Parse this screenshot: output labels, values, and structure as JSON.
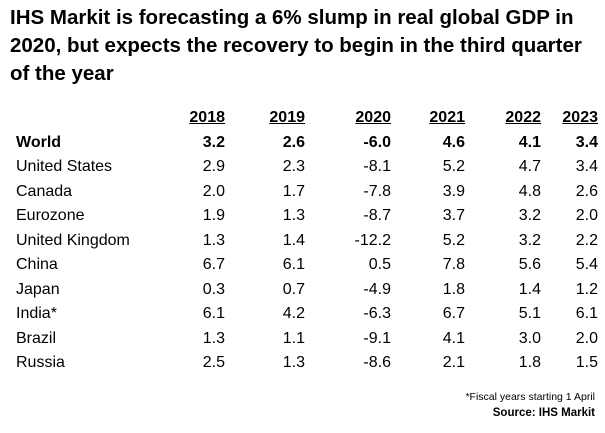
{
  "chart_data": {
    "type": "table",
    "title": "IHS Markit is forecasting a 6% slump in real global GDP in 2020, but expects the recovery to begin in the third quarter of the year",
    "columns": [
      "2018",
      "2019",
      "2020",
      "2021",
      "2022",
      "2023"
    ],
    "rows": [
      {
        "label": "World",
        "values": [
          "3.2",
          "2.6",
          "-6.0",
          "4.6",
          "4.1",
          "3.4"
        ]
      },
      {
        "label": "United States",
        "values": [
          "2.9",
          "2.3",
          "-8.1",
          "5.2",
          "4.7",
          "3.4"
        ]
      },
      {
        "label": "Canada",
        "values": [
          "2.0",
          "1.7",
          "-7.8",
          "3.9",
          "4.8",
          "2.6"
        ]
      },
      {
        "label": "Eurozone",
        "values": [
          "1.9",
          "1.3",
          "-8.7",
          "3.7",
          "3.2",
          "2.0"
        ]
      },
      {
        "label": "United Kingdom",
        "values": [
          "1.3",
          "1.4",
          "-12.2",
          "5.2",
          "3.2",
          "2.2"
        ]
      },
      {
        "label": "China",
        "values": [
          "6.7",
          "6.1",
          "0.5",
          "7.8",
          "5.6",
          "5.4"
        ]
      },
      {
        "label": "Japan",
        "values": [
          "0.3",
          "0.7",
          "-4.9",
          "1.8",
          "1.4",
          "1.2"
        ]
      },
      {
        "label": "India*",
        "values": [
          "6.1",
          "4.2",
          "-6.3",
          "6.7",
          "5.1",
          "6.1"
        ]
      },
      {
        "label": "Brazil",
        "values": [
          "1.3",
          "1.1",
          "-9.1",
          "4.1",
          "3.0",
          "2.0"
        ]
      },
      {
        "label": "Russia",
        "values": [
          "2.5",
          "1.3",
          "-8.6",
          "2.1",
          "1.8",
          "1.5"
        ]
      }
    ],
    "footnote": "*Fiscal years starting 1 April",
    "source": "Source: IHS Markit"
  }
}
